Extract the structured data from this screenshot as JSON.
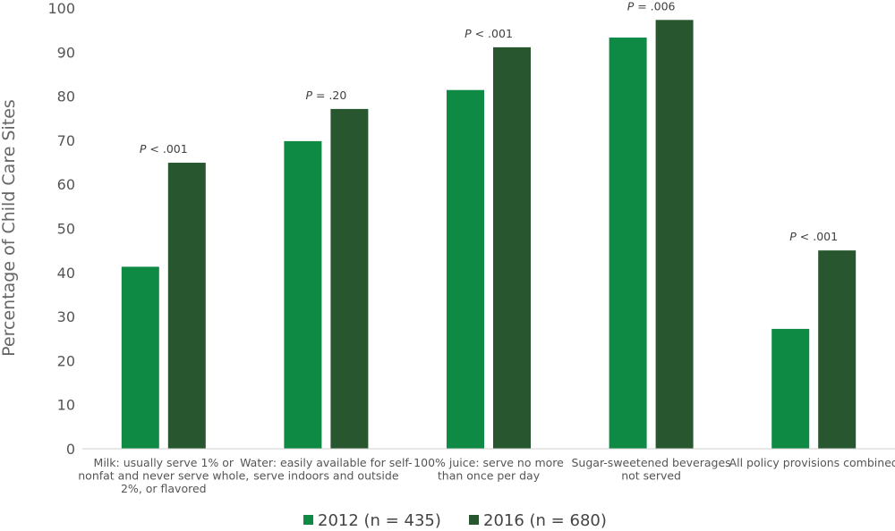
{
  "chart_data": {
    "type": "bar",
    "title": "",
    "xlabel": "",
    "ylabel": "Percentage of Child Care Sites",
    "ylim": [
      0,
      100
    ],
    "yticks": [
      0,
      10,
      20,
      30,
      40,
      50,
      60,
      70,
      80,
      90,
      100
    ],
    "grid": false,
    "legend_position": "bottom",
    "categories": [
      [
        "Milk: usually serve 1% or",
        "nonfat and never serve whole,",
        "2%, or flavored"
      ],
      [
        "Water: easily available for self-",
        "serve indoors and outside"
      ],
      [
        "100% juice: serve no more",
        "than once per day"
      ],
      [
        "Sugar-sweetened beverages",
        "not served"
      ],
      [
        "All policy provisions combined"
      ]
    ],
    "series": [
      {
        "name": "2012 (n = 435)",
        "color": "#0e8a45",
        "values": [
          41.3,
          69.8,
          81.4,
          93.3,
          27.2
        ]
      },
      {
        "name": "2016 (n = 680)",
        "color": "#27562f",
        "values": [
          64.9,
          77.1,
          91.1,
          97.3,
          45.0
        ]
      }
    ],
    "annotations": [
      {
        "p": "P",
        "rest": " < .001"
      },
      {
        "p": "P",
        "rest": " = .20"
      },
      {
        "p": "P",
        "rest": " < .001"
      },
      {
        "p": "P",
        "rest": " = .006"
      },
      {
        "p": "P",
        "rest": " < .001"
      }
    ]
  }
}
